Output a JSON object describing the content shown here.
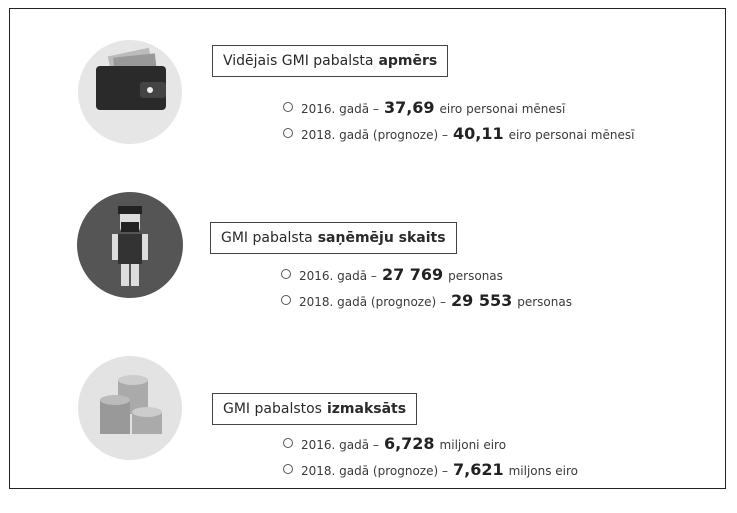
{
  "sections": [
    {
      "heading": {
        "text": "Vidējais GMI pabalsta",
        "bold": "apmērs"
      },
      "items": [
        {
          "prefix": "2016. gadā –",
          "value": "37,69",
          "suffix": "eiro personai mēnesī"
        },
        {
          "prefix": "2018. gadā (prognoze) –",
          "value": "40,11",
          "suffix": "eiro personai mēnesī"
        }
      ]
    },
    {
      "heading": {
        "text": "GMI pabalsta",
        "bold": "saņēmēju skaits"
      },
      "items": [
        {
          "prefix": "2016. gadā –",
          "value": "27 769",
          "suffix": "personas"
        },
        {
          "prefix": "2018. gadā (prognoze) –",
          "value": "29 553",
          "suffix": "personas"
        }
      ]
    },
    {
      "heading": {
        "text": "GMI pabalstos",
        "bold": "izmaksāts"
      },
      "items": [
        {
          "prefix": "2016. gadā –",
          "value": "6,728",
          "suffix": "miljoni eiro"
        },
        {
          "prefix": "2018. gadā (prognoze) –",
          "value": "7,621",
          "suffix": "miljons eiro"
        }
      ]
    }
  ]
}
